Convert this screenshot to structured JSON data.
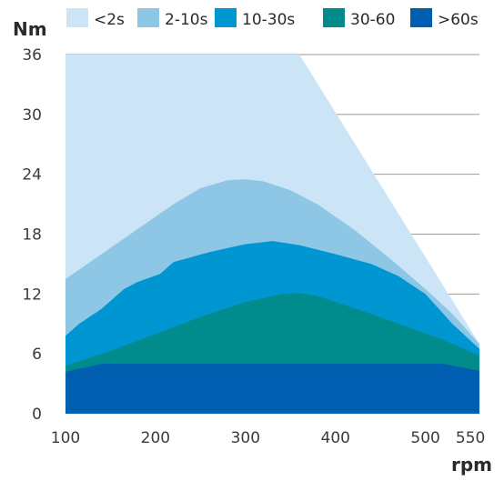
{
  "chart_data": {
    "type": "area",
    "ylabel": "Nm",
    "xlabel": "rpm",
    "xlim": [
      100,
      560
    ],
    "ylim": [
      0,
      36
    ],
    "x_ticks": [
      100,
      200,
      300,
      400,
      500,
      550
    ],
    "y_ticks": [
      0,
      6,
      12,
      18,
      24,
      30,
      36
    ],
    "grid": "horizontal",
    "legend_position": "top",
    "series": [
      {
        "name": "<2s",
        "color": "#cce5f6",
        "points": [
          [
            100,
            36
          ],
          [
            340,
            36
          ],
          [
            360,
            36
          ],
          [
            560,
            7
          ]
        ]
      },
      {
        "name": "2-10s",
        "color": "#8ec7e6",
        "points": [
          [
            100,
            13.5
          ],
          [
            140,
            16
          ],
          [
            180,
            18.5
          ],
          [
            220,
            21
          ],
          [
            250,
            22.6
          ],
          [
            280,
            23.4
          ],
          [
            300,
            23.5
          ],
          [
            320,
            23.3
          ],
          [
            350,
            22.4
          ],
          [
            380,
            21
          ],
          [
            420,
            18.5
          ],
          [
            460,
            15.6
          ],
          [
            500,
            12.5
          ],
          [
            530,
            10
          ],
          [
            560,
            7
          ]
        ]
      },
      {
        "name": "10-30s",
        "color": "#0096d2",
        "points": [
          [
            100,
            7.8
          ],
          [
            115,
            9
          ],
          [
            140,
            10.5
          ],
          [
            165,
            12.5
          ],
          [
            180,
            13.2
          ],
          [
            205,
            14
          ],
          [
            220,
            15.2
          ],
          [
            260,
            16.2
          ],
          [
            300,
            17
          ],
          [
            330,
            17.3
          ],
          [
            360,
            16.9
          ],
          [
            400,
            16
          ],
          [
            440,
            15
          ],
          [
            470,
            13.8
          ],
          [
            500,
            12
          ],
          [
            530,
            9
          ],
          [
            560,
            6.5
          ]
        ]
      },
      {
        "name": "30-60",
        "color": "#008c8c",
        "points": [
          [
            100,
            4.8
          ],
          [
            150,
            6.3
          ],
          [
            200,
            8
          ],
          [
            250,
            9.7
          ],
          [
            300,
            11.2
          ],
          [
            340,
            12
          ],
          [
            360,
            12.1
          ],
          [
            380,
            11.8
          ],
          [
            400,
            11.2
          ],
          [
            440,
            10
          ],
          [
            480,
            8.7
          ],
          [
            520,
            7.4
          ],
          [
            560,
            5.8
          ]
        ]
      },
      {
        "name": ">60s",
        "color": "#005eb0",
        "points": [
          [
            100,
            4.2
          ],
          [
            140,
            5
          ],
          [
            520,
            5
          ],
          [
            560,
            4.3
          ]
        ]
      }
    ]
  }
}
